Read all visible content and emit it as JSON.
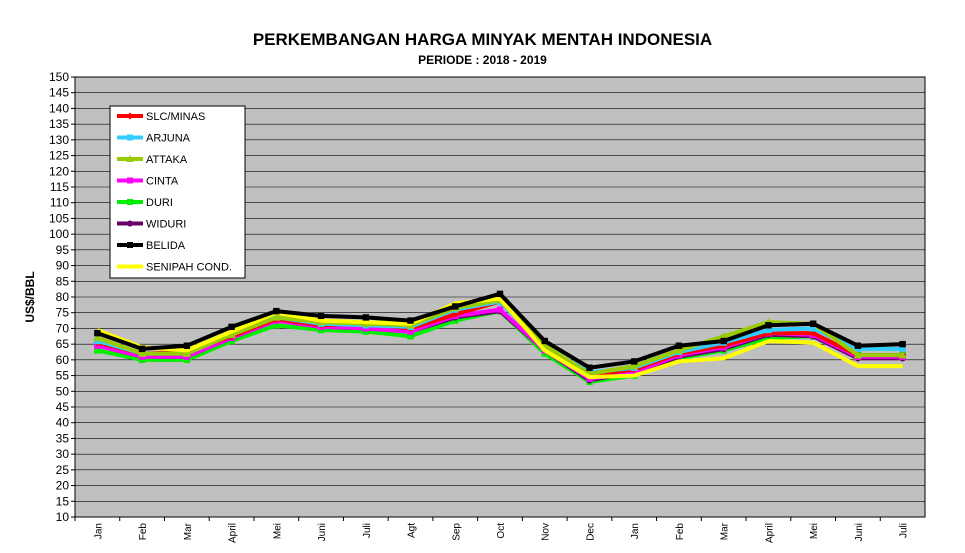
{
  "chart_data": {
    "type": "line",
    "title": "PERKEMBANGAN HARGA MINYAK MENTAH INDONESIA",
    "subtitle": "PERIODE  : 2018 - 2019",
    "ylabel": "US$/BBL",
    "xlabel": "",
    "ylim": [
      10,
      150
    ],
    "ystep": 5,
    "grid": true,
    "legend_position": "top-left",
    "plot_background": "#c0c0c0",
    "categories": [
      "Jan",
      "Feb",
      "Mar",
      "April",
      "Mei",
      "Juni",
      "Juli",
      "Agt",
      "Sep",
      "Oct",
      "Nov",
      "Dec",
      "Jan",
      "Feb",
      "Mar",
      "April",
      "Mei",
      "Juni",
      "Juli"
    ],
    "series": [
      {
        "name": "SLC/MINAS",
        "color": "#ff0000",
        "marker": "diamond",
        "values": [
          65.5,
          62.0,
          62.5,
          67.5,
          73.0,
          71.0,
          71.5,
          70.0,
          74.5,
          78.5,
          64.0,
          55.0,
          57.0,
          62.0,
          64.5,
          68.5,
          68.5,
          61.5,
          61.5
        ]
      },
      {
        "name": "ARJUNA",
        "color": "#33ccff",
        "marker": "square",
        "values": [
          66.0,
          62.0,
          62.0,
          68.0,
          73.5,
          71.5,
          71.0,
          70.5,
          76.0,
          78.5,
          64.0,
          56.0,
          57.5,
          62.5,
          65.5,
          69.5,
          70.0,
          63.5,
          63.5
        ]
      },
      {
        "name": "ATTAKA",
        "color": "#99cc00",
        "marker": "triangle",
        "values": [
          67.0,
          62.0,
          62.0,
          68.0,
          73.5,
          72.0,
          71.5,
          71.0,
          76.5,
          79.0,
          64.5,
          55.5,
          58.0,
          63.0,
          67.5,
          72.0,
          71.5,
          61.5,
          61.5
        ]
      },
      {
        "name": "CINTA",
        "color": "#ff00ff",
        "marker": "square",
        "values": [
          64.5,
          61.0,
          61.0,
          67.0,
          72.5,
          70.5,
          70.0,
          69.0,
          74.0,
          76.0,
          63.0,
          54.0,
          56.0,
          61.5,
          64.0,
          68.5,
          68.0,
          61.0,
          61.0
        ]
      },
      {
        "name": "DURI",
        "color": "#00ee00",
        "marker": "square",
        "values": [
          63.0,
          60.0,
          60.0,
          66.0,
          71.0,
          69.5,
          69.0,
          67.5,
          72.5,
          75.5,
          62.0,
          53.0,
          55.0,
          60.5,
          63.0,
          67.0,
          67.5,
          61.5,
          61.5
        ]
      },
      {
        "name": "WIDURI",
        "color": "#660066",
        "marker": "circle",
        "values": [
          64.5,
          61.0,
          61.0,
          67.0,
          72.5,
          70.5,
          70.0,
          69.0,
          73.5,
          75.5,
          63.0,
          53.5,
          56.0,
          61.0,
          63.5,
          68.0,
          67.5,
          60.5,
          60.5
        ]
      },
      {
        "name": "BELIDA",
        "color": "#000000",
        "marker": "square",
        "values": [
          68.5,
          63.5,
          64.5,
          70.5,
          75.5,
          74.0,
          73.5,
          72.5,
          77.0,
          81.0,
          66.0,
          57.5,
          59.5,
          64.5,
          66.0,
          71.0,
          71.5,
          64.5,
          65.0
        ]
      },
      {
        "name": "SENIPAH COND.",
        "color": "#ffff00",
        "marker": "none",
        "values": [
          69.5,
          64.0,
          63.0,
          69.0,
          75.0,
          72.5,
          72.0,
          71.5,
          78.0,
          79.5,
          63.0,
          54.5,
          55.0,
          59.5,
          60.5,
          66.0,
          65.5,
          58.0,
          58.0
        ]
      }
    ]
  }
}
